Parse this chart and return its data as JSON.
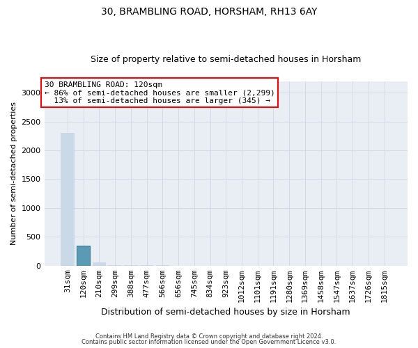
{
  "title1": "30, BRAMBLING ROAD, HORSHAM, RH13 6AY",
  "title2": "Size of property relative to semi-detached houses in Horsham",
  "xlabel": "Distribution of semi-detached houses by size in Horsham",
  "ylabel": "Number of semi-detached properties",
  "categories": [
    "31sqm",
    "120sqm",
    "210sqm",
    "299sqm",
    "388sqm",
    "477sqm",
    "566sqm",
    "656sqm",
    "745sqm",
    "834sqm",
    "923sqm",
    "1012sqm",
    "1101sqm",
    "1191sqm",
    "1280sqm",
    "1369sqm",
    "1458sqm",
    "1547sqm",
    "1637sqm",
    "1726sqm",
    "1815sqm"
  ],
  "values": [
    2299,
    345,
    50,
    5,
    2,
    1,
    1,
    0,
    0,
    0,
    0,
    0,
    0,
    0,
    0,
    0,
    0,
    0,
    0,
    0,
    0
  ],
  "bar_color_default": "#c9d9e8",
  "bar_color_highlight": "#5b9ab5",
  "highlight_index": 1,
  "ylim": [
    0,
    3200
  ],
  "yticks": [
    0,
    500,
    1000,
    1500,
    2000,
    2500,
    3000
  ],
  "annotation_line1": "30 BRAMBLING ROAD: 120sqm",
  "annotation_line2": "← 86% of semi-detached houses are smaller (2,299)",
  "annotation_line3": "  13% of semi-detached houses are larger (345) →",
  "footer1": "Contains HM Land Registry data © Crown copyright and database right 2024.",
  "footer2": "Contains public sector information licensed under the Open Government Licence v3.0.",
  "grid_color": "#d0d8e4",
  "background_color": "#e8eef4",
  "plot_background": "#ffffff",
  "title1_fontsize": 10,
  "title2_fontsize": 9,
  "ylabel_fontsize": 8,
  "xlabel_fontsize": 9,
  "annotation_fontsize": 8,
  "tick_fontsize": 8
}
